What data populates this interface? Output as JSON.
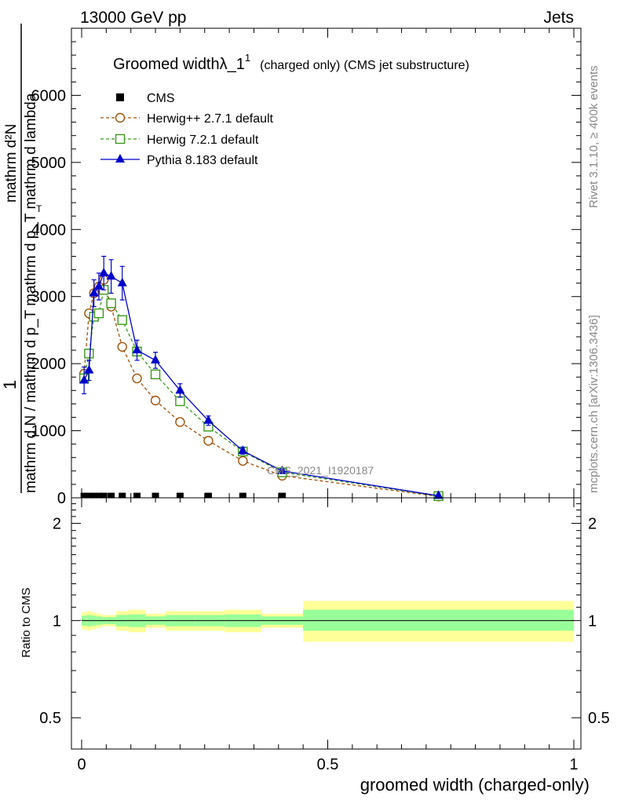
{
  "header": {
    "left": "13000 GeV pp",
    "right": "Jets"
  },
  "side_labels": {
    "rivet": "Rivet 3.1.10, ≥ 400k events",
    "mcplots": "mcplots.cern.ch [arXiv:1306.3436]"
  },
  "colors": {
    "cms": "#000000",
    "herwigpp": "#a0520a",
    "herwig7": "#3a9a1a",
    "pythia": "#0000cc",
    "band_outer": "#ffff99",
    "band_inner": "#99ff99"
  },
  "chart_data": [
    {
      "type": "line",
      "panel": "main",
      "title_main": "Groomed widthλ_1",
      "title_sup": "1",
      "title_rest": "(charged only) (CMS jet substructure)",
      "analysis_label": "CMS_2021_I1920187",
      "ylabel_numerator": "1",
      "ylabel_denominator": "mathrm d N / mathrm d p_T mathrm d p_T mathrm d lambda",
      "ylabel_upper": "mathrm d²N",
      "ylabel_sub_T": "T",
      "xlim": [
        0,
        1
      ],
      "ylim": [
        0,
        7000
      ],
      "yticks": [
        {
          "v": 0,
          "label": "0"
        },
        {
          "v": 1000,
          "label": "1000"
        },
        {
          "v": 2000,
          "label": "2000"
        },
        {
          "v": 3000,
          "label": "3000"
        },
        {
          "v": 4000,
          "label": "4000"
        },
        {
          "v": 5000,
          "label": "5000"
        },
        {
          "v": 6000,
          "label": "6000"
        }
      ],
      "series": [
        {
          "name": "CMS",
          "key": "cms",
          "marker": "square-filled",
          "x": [
            0.005,
            0.015,
            0.025,
            0.035,
            0.045,
            0.06,
            0.0825,
            0.1125,
            0.15,
            0.2,
            0.2575,
            0.3275,
            0.4075,
            0.725
          ],
          "y": [
            5,
            5,
            5,
            5,
            5,
            5,
            5,
            5,
            5,
            5,
            5,
            5,
            5,
            5
          ]
        },
        {
          "name": "Herwig++ 2.7.1 default",
          "key": "herwigpp",
          "marker": "circle-open",
          "x": [
            0.005,
            0.015,
            0.025,
            0.035,
            0.045,
            0.06,
            0.0825,
            0.1125,
            0.15,
            0.2,
            0.2575,
            0.3275,
            0.4075,
            0.725
          ],
          "y": [
            1850,
            2750,
            3050,
            3150,
            3250,
            2850,
            2250,
            1780,
            1450,
            1130,
            850,
            550,
            330,
            20
          ]
        },
        {
          "name": "Herwig 7.2.1 default",
          "key": "herwig7",
          "marker": "square-open",
          "x": [
            0.005,
            0.015,
            0.025,
            0.035,
            0.045,
            0.06,
            0.0825,
            0.1125,
            0.15,
            0.2,
            0.2575,
            0.3275,
            0.4075,
            0.725
          ],
          "y": [
            1780,
            2150,
            2700,
            2750,
            3100,
            2900,
            2650,
            2180,
            1840,
            1440,
            1060,
            690,
            380,
            25
          ]
        },
        {
          "name": "Pythia 8.183 default",
          "key": "pythia",
          "marker": "triangle-filled",
          "x": [
            0.005,
            0.015,
            0.025,
            0.035,
            0.045,
            0.06,
            0.0825,
            0.1125,
            0.15,
            0.2,
            0.2575,
            0.3275,
            0.4075,
            0.725
          ],
          "y": [
            1750,
            1900,
            3050,
            3150,
            3350,
            3300,
            3200,
            2200,
            2050,
            1600,
            1150,
            700,
            400,
            30
          ],
          "yerr": [
            200,
            150,
            200,
            200,
            250,
            250,
            250,
            150,
            120,
            100,
            70,
            50,
            30,
            10
          ]
        }
      ]
    },
    {
      "type": "area",
      "panel": "ratio",
      "ylabel": "Ratio to CMS",
      "xlabel": "groomed width (charged-only)",
      "scale": "log",
      "ylim": [
        0.4,
        2.4
      ],
      "xticks": [
        {
          "v": 0,
          "label": "0"
        },
        {
          "v": 0.5,
          "label": "0.5"
        },
        {
          "v": 1,
          "label": "1"
        }
      ],
      "yticks": [
        {
          "v": 0.5,
          "label": "0.5"
        },
        {
          "v": 1,
          "label": "1"
        },
        {
          "v": 2,
          "label": "2"
        }
      ],
      "reference_line": 1,
      "bins": [
        {
          "x0": 0.0,
          "x1": 0.01,
          "outer": [
            0.94,
            1.06
          ],
          "inner": [
            0.965,
            1.035
          ]
        },
        {
          "x0": 0.01,
          "x1": 0.02,
          "outer": [
            0.93,
            1.07
          ],
          "inner": [
            0.96,
            1.04
          ]
        },
        {
          "x0": 0.02,
          "x1": 0.03,
          "outer": [
            0.94,
            1.06
          ],
          "inner": [
            0.965,
            1.035
          ]
        },
        {
          "x0": 0.03,
          "x1": 0.04,
          "outer": [
            0.95,
            1.05
          ],
          "inner": [
            0.97,
            1.03
          ]
        },
        {
          "x0": 0.04,
          "x1": 0.05,
          "outer": [
            0.96,
            1.04
          ],
          "inner": [
            0.975,
            1.025
          ]
        },
        {
          "x0": 0.05,
          "x1": 0.07,
          "outer": [
            0.96,
            1.04
          ],
          "inner": [
            0.975,
            1.025
          ]
        },
        {
          "x0": 0.07,
          "x1": 0.095,
          "outer": [
            0.93,
            1.07
          ],
          "inner": [
            0.96,
            1.04
          ]
        },
        {
          "x0": 0.095,
          "x1": 0.13,
          "outer": [
            0.92,
            1.08
          ],
          "inner": [
            0.955,
            1.045
          ]
        },
        {
          "x0": 0.13,
          "x1": 0.17,
          "outer": [
            0.95,
            1.05
          ],
          "inner": [
            0.97,
            1.03
          ]
        },
        {
          "x0": 0.17,
          "x1": 0.23,
          "outer": [
            0.93,
            1.07
          ],
          "inner": [
            0.96,
            1.04
          ]
        },
        {
          "x0": 0.23,
          "x1": 0.29,
          "outer": [
            0.93,
            1.07
          ],
          "inner": [
            0.96,
            1.04
          ]
        },
        {
          "x0": 0.29,
          "x1": 0.365,
          "outer": [
            0.92,
            1.08
          ],
          "inner": [
            0.955,
            1.045
          ]
        },
        {
          "x0": 0.365,
          "x1": 0.45,
          "outer": [
            0.95,
            1.05
          ],
          "inner": [
            0.97,
            1.03
          ]
        },
        {
          "x0": 0.45,
          "x1": 1.0,
          "outer": [
            0.86,
            1.15
          ],
          "inner": [
            0.93,
            1.08
          ]
        }
      ]
    }
  ]
}
